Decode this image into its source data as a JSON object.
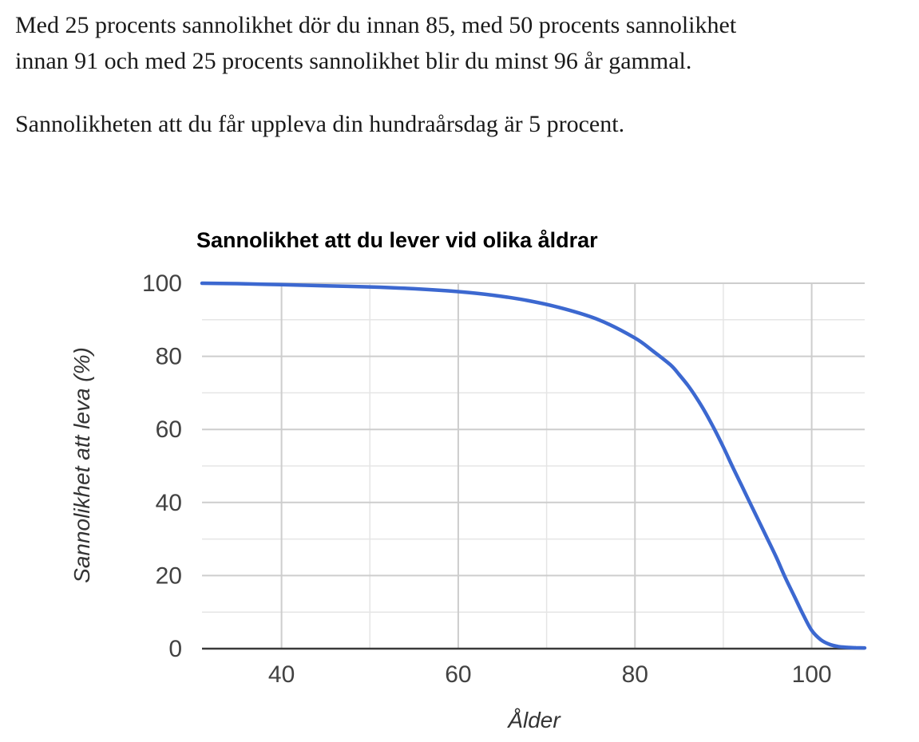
{
  "page": {
    "intro": {
      "paragraph1_lines": [
        "Med 25 procents sannolikhet dör du innan 85, med 50 procents sannolikhet",
        "innan 91 och med 25 procents sannolikhet blir du minst 96 år gammal."
      ],
      "paragraph2": "Sannolikheten att du får uppleva din hundraårsdag är 5 procent."
    }
  },
  "colors": {
    "background": "#ffffff",
    "body_text": "#1a1a1a",
    "chart_title": "#000000",
    "tick_label": "#424242",
    "axis_title": "#333333",
    "axis_line": "#3a3a3a",
    "grid_major": "#cdcdcd",
    "grid_minor": "#e5e5e5",
    "series_line": "#3c68d0"
  },
  "chart_data": {
    "type": "line",
    "title": "Sannolikhet att du lever vid olika åldrar",
    "xlabel": "Ålder",
    "ylabel": "Sannolikhet att leva (%)",
    "xlim": [
      31,
      106
    ],
    "ylim": [
      0,
      100
    ],
    "x_major_ticks": [
      40,
      60,
      80,
      100
    ],
    "x_minor_gridlines": [
      50,
      70,
      90
    ],
    "y_major_ticks": [
      0,
      20,
      40,
      60,
      80,
      100
    ],
    "y_minor_gridlines": [
      10,
      30,
      50,
      70,
      90
    ],
    "grid": true,
    "legend": "none",
    "line_width": 4.5,
    "series": [
      {
        "name": "Sannolikhet att leva (%)",
        "points": [
          [
            31,
            100
          ],
          [
            35,
            99.9
          ],
          [
            40,
            99.6
          ],
          [
            45,
            99.3
          ],
          [
            50,
            99.0
          ],
          [
            55,
            98.5
          ],
          [
            60,
            97.7
          ],
          [
            64,
            96.7
          ],
          [
            68,
            95.2
          ],
          [
            72,
            93.0
          ],
          [
            76,
            89.9
          ],
          [
            80,
            85.0
          ],
          [
            82,
            81.5
          ],
          [
            84,
            77.7
          ],
          [
            85,
            75.0
          ],
          [
            86,
            72.0
          ],
          [
            87,
            68.5
          ],
          [
            88,
            64.5
          ],
          [
            89,
            60.0
          ],
          [
            90,
            55.2
          ],
          [
            91,
            50.0
          ],
          [
            92,
            45.0
          ],
          [
            93,
            40.0
          ],
          [
            94,
            35.0
          ],
          [
            95,
            30.0
          ],
          [
            96,
            25.0
          ],
          [
            97,
            19.5
          ],
          [
            98,
            14.5
          ],
          [
            99,
            9.5
          ],
          [
            100,
            5.0
          ],
          [
            101,
            2.5
          ],
          [
            102,
            1.2
          ],
          [
            103,
            0.6
          ],
          [
            104,
            0.35
          ],
          [
            105,
            0.25
          ],
          [
            106,
            0.2
          ]
        ]
      }
    ]
  }
}
